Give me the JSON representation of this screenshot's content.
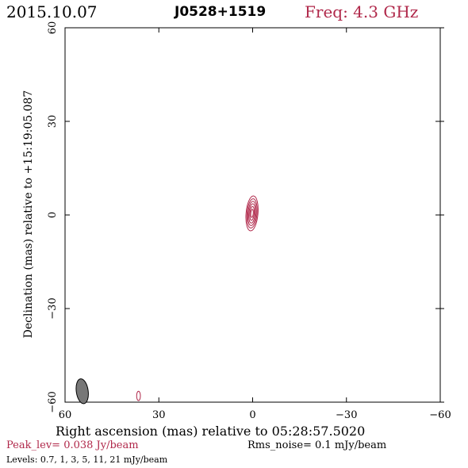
{
  "header": {
    "date": "2015.10.07",
    "source": "J0528+1519",
    "freq": "Freq: 4.3 GHz"
  },
  "footer": {
    "peak": "Peak_lev=  0.038 Jy/beam",
    "rms": "Rms_noise=  0.1 mJy/beam",
    "levels": "Levels: 0.7,    1,    3,    5,   11,   21 mJy/beam"
  },
  "colors": {
    "accent": "#b0284a",
    "axis": "#000000",
    "beam": "#777777"
  },
  "chart_data": {
    "type": "contour",
    "xlabel": "Right ascension (mas) relative to 05:28:57.5020",
    "ylabel": "Declination (mas) relative to +15:19:05.087",
    "xlim": [
      60,
      -60
    ],
    "ylim": [
      -60,
      60
    ],
    "xticks": [
      60,
      30,
      0,
      -30,
      -60
    ],
    "yticks": [
      60,
      30,
      0,
      -30,
      -60
    ],
    "xtick_labels": [
      "60",
      "30",
      "0",
      "−30",
      "−60"
    ],
    "ytick_labels": [
      "60",
      "30",
      "0",
      "−30",
      "−60"
    ],
    "contour_levels_mJy": [
      0.7,
      1,
      3,
      5,
      11,
      21
    ],
    "peak_Jy_per_beam": 0.038,
    "rms_noise_mJy_per_beam": 0.1,
    "components": [
      {
        "center_x_mas": 0.2,
        "center_y_mas": 0.5,
        "contour_semi_major_mas": [
          5.6,
          4.7,
          3.9,
          3.1,
          2.2,
          1.3
        ],
        "contour_semi_minor_mas": [
          1.9,
          1.6,
          1.3,
          1.0,
          0.7,
          0.4
        ],
        "pa_deg": 5
      },
      {
        "center_x_mas": 36.5,
        "center_y_mas": -58.0,
        "contour_semi_major_mas": [
          1.5
        ],
        "contour_semi_minor_mas": [
          0.6
        ],
        "pa_deg": 0
      }
    ],
    "beam": {
      "center_x_mas": 54.5,
      "center_y_mas": -56.5,
      "major_mas": 4.0,
      "minor_mas": 1.9,
      "pa_deg": -8
    }
  }
}
